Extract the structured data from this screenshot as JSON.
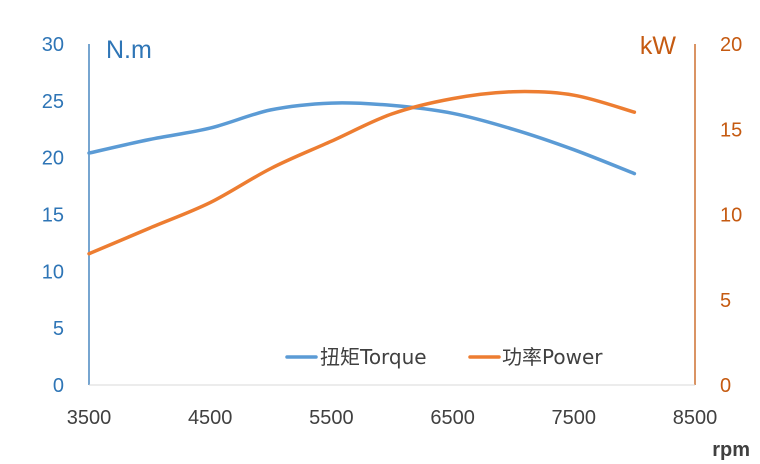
{
  "chart_data": {
    "type": "line",
    "title": "",
    "xlabel": "rpm",
    "ylabel_left": "N.m",
    "ylabel_right": "kW",
    "xlim": [
      3500,
      8500
    ],
    "xticks": [
      "3500",
      "4500",
      "5500",
      "6500",
      "7500",
      "8500"
    ],
    "ylim_left": [
      0,
      30
    ],
    "yticks_left": [
      "0",
      "5",
      "10",
      "15",
      "20",
      "25",
      "30"
    ],
    "ylim_right": [
      0,
      20
    ],
    "yticks_right": [
      "0",
      "5",
      "10",
      "15",
      "20"
    ],
    "grid": false,
    "legend_position": "bottom-right",
    "series": [
      {
        "name": "扭矩Torque",
        "axis": "left",
        "color": "#5b9bd5",
        "x": [
          3500,
          4000,
          4500,
          5000,
          5500,
          6000,
          6500,
          7000,
          7500,
          8000
        ],
        "y": [
          20.4,
          21.6,
          22.6,
          24.2,
          24.8,
          24.6,
          23.9,
          22.5,
          20.7,
          18.6
        ]
      },
      {
        "name": "功率Power",
        "axis": "right",
        "color": "#ed7d31",
        "x": [
          3500,
          4000,
          4500,
          5000,
          5500,
          6000,
          6500,
          7000,
          7500,
          8000
        ],
        "y": [
          7.7,
          9.2,
          10.7,
          12.7,
          14.3,
          15.9,
          16.8,
          17.2,
          17.0,
          16.0
        ]
      }
    ]
  }
}
